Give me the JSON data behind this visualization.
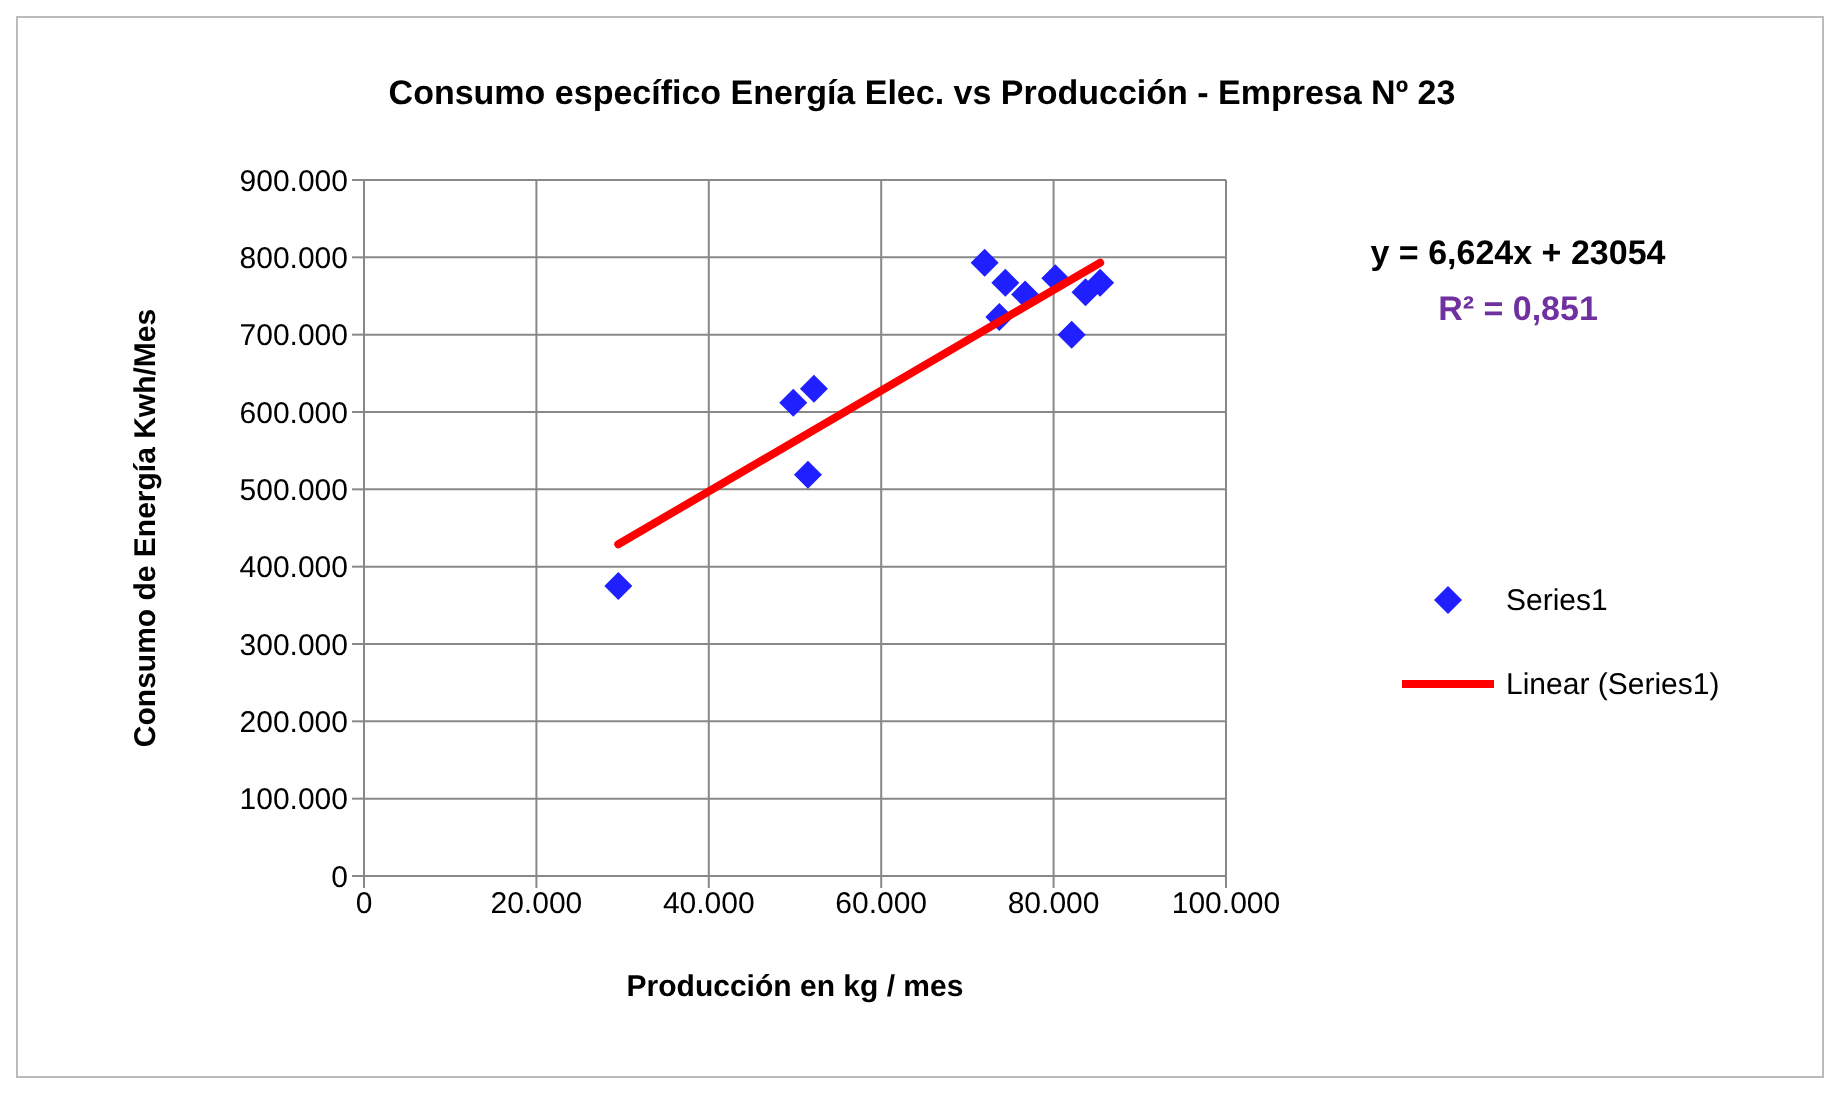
{
  "chart_data": {
    "type": "scatter",
    "title": "Consumo específico Energía Elec. vs Producción - Empresa Nº 23",
    "xlabel": "Producción  en kg / mes",
    "ylabel": "Consumo de Energía  Kwh/Mes",
    "series": [
      {
        "name": "Series1",
        "color": "#1f1fff",
        "marker": "diamond",
        "x": [
          29500,
          49800,
          52200,
          51500,
          72000,
          74400,
          76700,
          73700,
          80200,
          82100,
          83700,
          85400
        ],
        "values": [
          375000,
          612000,
          630000,
          519000,
          793000,
          767000,
          752000,
          723000,
          773000,
          700000,
          755000,
          767000
        ]
      },
      {
        "name": "Linear (Series1)",
        "type": "line",
        "color": "#ff0000",
        "marker": "none",
        "x": [
          29500,
          85400
        ],
        "values": [
          429000,
          793000
        ]
      }
    ],
    "xlim": [
      0,
      100000
    ],
    "xticks": [
      0,
      {
        "value": 20000,
        "label": "20.000"
      },
      {
        "value": 40000,
        "label": "40.000"
      },
      {
        "value": 60000,
        "label": "60.000"
      },
      {
        "value": 80000,
        "label": "80.000"
      },
      {
        "value": 100000,
        "label": "100.000"
      }
    ],
    "ylim": [
      0,
      900000
    ],
    "yticks": [
      0,
      {
        "value": 100000,
        "label": "100.000"
      },
      {
        "value": 200000,
        "label": "200.000"
      },
      {
        "value": 300000,
        "label": "300.000"
      },
      {
        "value": 400000,
        "label": "400.000"
      },
      {
        "value": 500000,
        "label": "500.000"
      },
      {
        "value": 600000,
        "label": "600.000"
      },
      {
        "value": 700000,
        "label": "700.000"
      },
      {
        "value": 800000,
        "label": "800.000"
      },
      {
        "value": 900000,
        "label": "900.000"
      }
    ],
    "annotations": [
      "y = 6,624x + 23054",
      "R² = 0,851"
    ],
    "grid": true,
    "legend": "right"
  }
}
